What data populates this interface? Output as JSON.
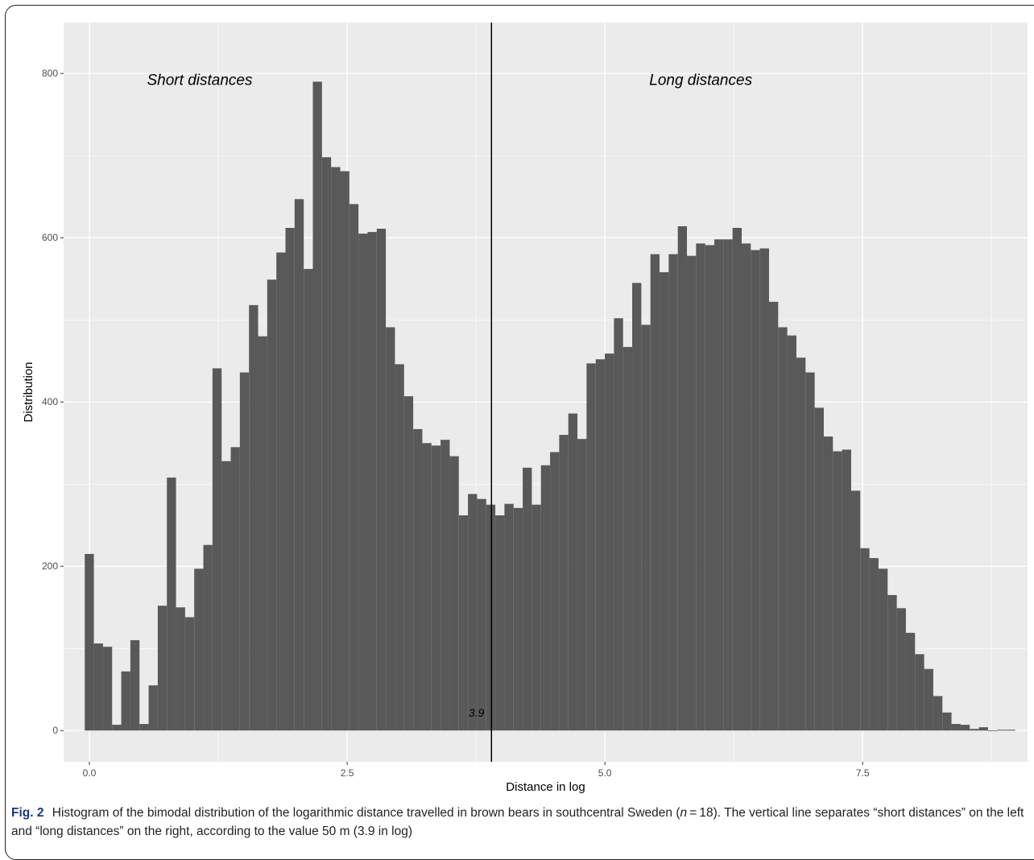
{
  "chart_data": {
    "type": "bar",
    "subtype": "histogram",
    "xlabel": "Distance in log",
    "ylabel": "Distribution",
    "xlim": [
      -0.25,
      9.1
    ],
    "ylim": [
      -38,
      862
    ],
    "x_ticks": [
      0.0,
      2.5,
      5.0,
      7.5
    ],
    "x_tick_labels": [
      "0.0",
      "2.5",
      "5.0",
      "7.5"
    ],
    "y_ticks": [
      0,
      200,
      400,
      600,
      800
    ],
    "y_tick_labels": [
      "0",
      "200",
      "400",
      "600",
      "800"
    ],
    "grid": true,
    "bin_start": -0.045,
    "bin_width": 0.0885,
    "values": [
      215,
      106,
      102,
      7,
      72,
      110,
      8,
      55,
      152,
      308,
      150,
      138,
      197,
      226,
      441,
      328,
      345,
      436,
      518,
      480,
      549,
      582,
      612,
      647,
      562,
      790,
      698,
      686,
      681,
      641,
      605,
      607,
      611,
      491,
      446,
      407,
      367,
      350,
      347,
      354,
      334,
      262,
      288,
      282,
      275,
      262,
      276,
      271,
      320,
      275,
      323,
      339,
      360,
      386,
      355,
      447,
      452,
      459,
      502,
      467,
      545,
      494,
      580,
      558,
      580,
      614,
      578,
      593,
      591,
      598,
      598,
      612,
      593,
      585,
      587,
      522,
      491,
      481,
      454,
      436,
      393,
      358,
      340,
      342,
      292,
      222,
      210,
      197,
      165,
      149,
      119,
      93,
      75,
      42,
      22,
      8,
      7,
      2,
      4,
      0,
      1,
      1
    ],
    "vline": {
      "x": 3.9,
      "label": "3.9"
    },
    "annotations": [
      {
        "text": "Short distances",
        "x": 1.07,
        "y": 786
      },
      {
        "text": "Long distances",
        "x": 5.93,
        "y": 786
      }
    ]
  },
  "caption": {
    "fig_label": "Fig. 2",
    "text_before_n": "Histogram of the bimodal distribution of the logarithmic distance travelled in brown bears in southcentral Sweden (",
    "n_symbol": "n",
    "text_after_n": " = 18). The vertical line separates “short distances” on the left and “long distances” on the right, according to the value 50 m (3.9 in log)"
  },
  "colors": {
    "panel_bg": "#ebebeb",
    "grid": "#ffffff",
    "bar": "#595959",
    "vline": "#000000"
  }
}
